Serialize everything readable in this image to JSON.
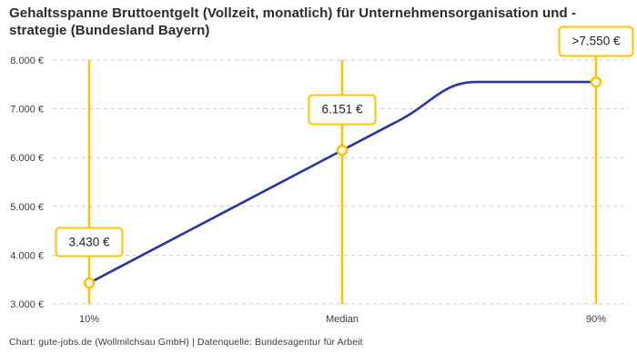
{
  "title": "Gehaltsspanne Bruttoentgelt (Vollzeit, monatlich) für Unternehmensorganisation und -strategie (Bundesland Bayern)",
  "footer": {
    "text": "Chart: gute-jobs.de (Wollmilchsau GmbH) | Datenquelle: Bundesagentur für Arbeit"
  },
  "colors": {
    "background": "#FFFFFF",
    "accent_yellow": "#FDC500",
    "line_blue": "#2A35A0",
    "grid_gray": "#C9C9C9",
    "title_text": "#2B2B2B",
    "axis_text": "#3C3C3C",
    "label_text": "#222222"
  },
  "chart_data": {
    "type": "line",
    "title": "Gehaltsspanne Bruttoentgelt (Vollzeit, monatlich) für Unternehmensorganisation und -strategie (Bundesland Bayern)",
    "xlabel": "",
    "ylabel": "",
    "x_categories": [
      "10%",
      "Median",
      "90%"
    ],
    "points": [
      {
        "category": "10%",
        "value": 3430,
        "display": "3.430 €"
      },
      {
        "category": "Median",
        "value": 6151,
        "display": "6.151 €"
      },
      {
        "category": "90%",
        "value": 7550,
        "display": ">7.550 €"
      }
    ],
    "y_ticks": [
      {
        "value": 3000,
        "label": "3.000 €"
      },
      {
        "value": 4000,
        "label": "4.000 €"
      },
      {
        "value": 5000,
        "label": "5.000 €"
      },
      {
        "value": 6000,
        "label": "6.000 €"
      },
      {
        "value": 7000,
        "label": "7.000 €"
      },
      {
        "value": 8000,
        "label": "8.000 €"
      }
    ],
    "ylim": [
      3000,
      8000
    ],
    "grid": "horizontal-dashed",
    "legend": "none",
    "annotations": "Each percentile has a vertical yellow marker line with an open-circle data point and a yellow-outlined value box above it; the curve plateaus at 7.550 € before the 90% marker (value capped, shown as >7.550 €)."
  }
}
